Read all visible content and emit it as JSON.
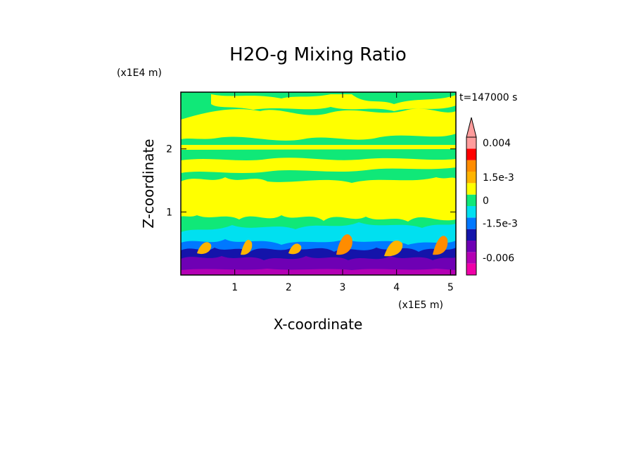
{
  "chart_data": {
    "type": "heatmap",
    "title": "H2O-g Mixing Ratio",
    "xlabel": "X-coordinate",
    "ylabel": "Z-coordinate",
    "x_unit": "(x1E5 m)",
    "y_unit": "(x1E4 m)",
    "time_label": "t=147000 s",
    "x_ticks": [
      "1",
      "2",
      "3",
      "4",
      "5"
    ],
    "y_ticks": [
      "1",
      "2"
    ],
    "xlim": [
      0,
      5.1
    ],
    "ylim": [
      0,
      2.9
    ],
    "colorbar": {
      "levels": [
        {
          "value": -0.0075,
          "color": "#f000a8"
        },
        {
          "value": -0.006,
          "color": "#b400b4"
        },
        {
          "value": -0.0045,
          "color": "#6e00b4"
        },
        {
          "value": -0.003,
          "color": "#1414aa"
        },
        {
          "value": -0.0015,
          "color": "#0078ff"
        },
        {
          "value": -0.00075,
          "color": "#00e0f0"
        },
        {
          "value": 0,
          "color": "#10e878"
        },
        {
          "value": 0.00075,
          "color": "#ffff00"
        },
        {
          "value": 0.0015,
          "color": "#ffb400"
        },
        {
          "value": 0.00225,
          "color": "#ff8c00"
        },
        {
          "value": 0.003,
          "color": "#ff0000"
        },
        {
          "value": 0.004,
          "color": "#ff9c9c"
        }
      ],
      "tick_labels": [
        "0.004",
        "1.5e-3",
        "0",
        "-1.5e-3",
        "-0.006"
      ],
      "tick_values": [
        0.004,
        0.0015,
        0,
        -0.0015,
        -0.006
      ]
    },
    "fields": {
      "upper_layer": "mixed yellow/green bands",
      "boundary_layer": "cyan, blue, purple and orange turbulent eddies"
    }
  }
}
